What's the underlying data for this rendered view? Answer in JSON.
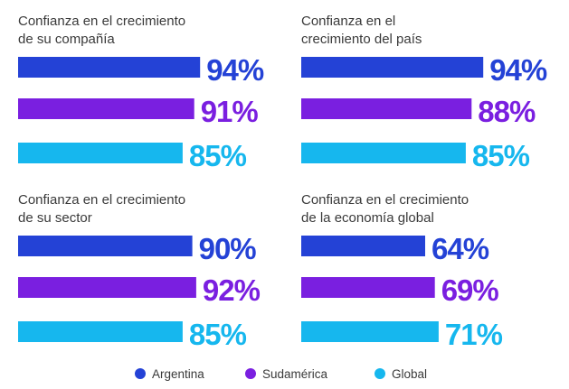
{
  "colors": {
    "argentina": "#2442d6",
    "sudamerica": "#7a1fe0",
    "global": "#16b7ee"
  },
  "legend": [
    {
      "label": "Argentina",
      "color": "#2442d6",
      "icon": "circle-icon"
    },
    {
      "label": "Sudamérica",
      "color": "#7a1fe0",
      "icon": "circle-icon"
    },
    {
      "label": "Global",
      "color": "#16b7ee",
      "icon": "circle-icon"
    }
  ],
  "chart_data": {
    "type": "bar",
    "orientation": "horizontal",
    "series_names": [
      "Argentina",
      "Sudamérica",
      "Global"
    ],
    "value_unit": "%",
    "xlim": [
      0,
      100
    ],
    "legend_position": "bottom-center",
    "panels": [
      {
        "title": [
          "Confianza en el crecimiento",
          "de su compañía"
        ],
        "values": [
          94,
          91,
          85
        ]
      },
      {
        "title": [
          "Confianza en el",
          "crecimiento del país"
        ],
        "values": [
          94,
          88,
          85
        ]
      },
      {
        "title": [
          "Confianza en el crecimiento",
          "de su sector"
        ],
        "values": [
          90,
          92,
          85
        ]
      },
      {
        "title": [
          "Confianza en el crecimiento",
          "de la economía global"
        ],
        "values": [
          64,
          69,
          71
        ]
      }
    ]
  }
}
